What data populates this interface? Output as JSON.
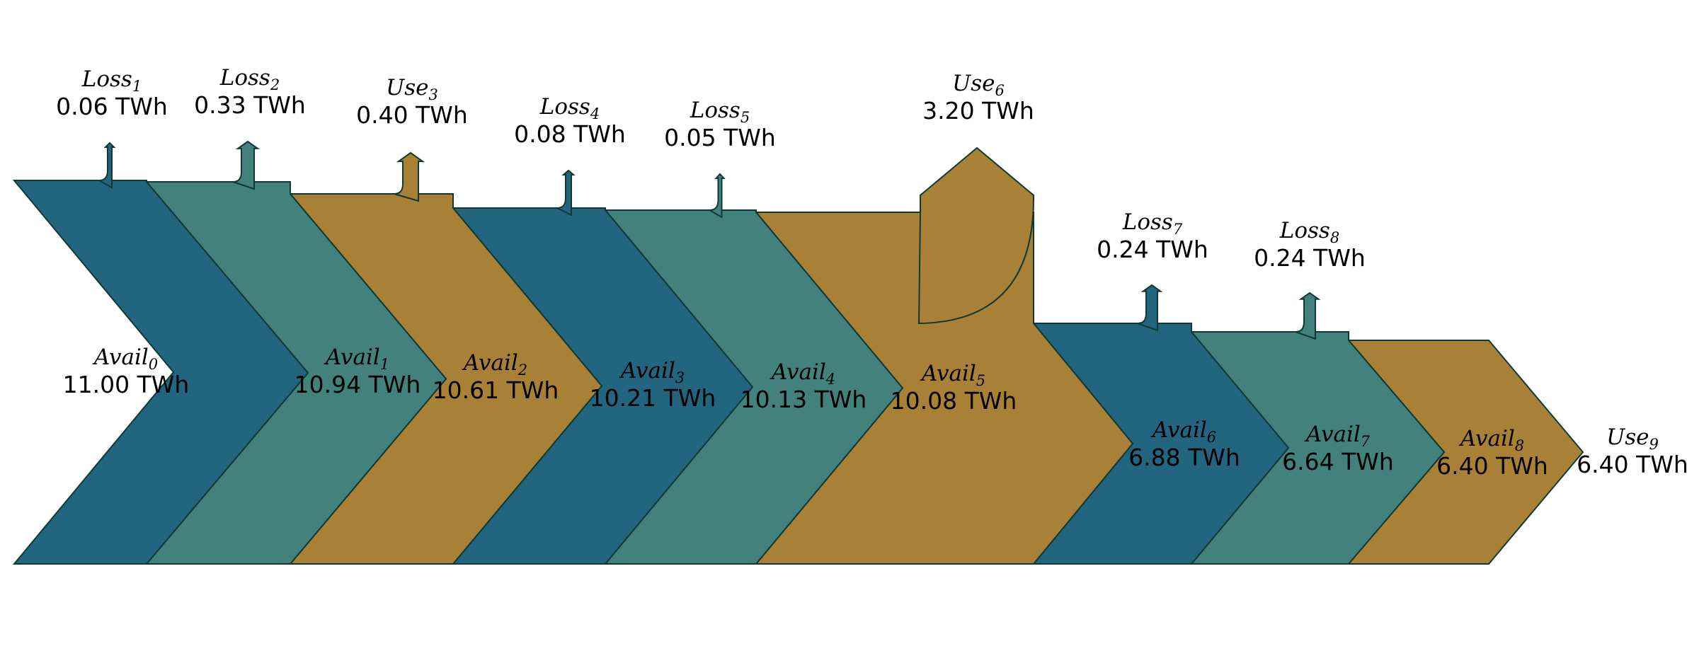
{
  "colors": {
    "blue": "#23647f",
    "teal": "#43827c",
    "gold": "#a98136",
    "edge": "#0e3a33"
  },
  "segments": [
    {
      "name": "Avail",
      "sub": "0",
      "value": "11.00 TWh",
      "color": "blue"
    },
    {
      "name": "Avail",
      "sub": "1",
      "value": "10.94 TWh",
      "color": "teal"
    },
    {
      "name": "Avail",
      "sub": "2",
      "value": "10.61 TWh",
      "color": "gold"
    },
    {
      "name": "Avail",
      "sub": "3",
      "value": "10.21 TWh",
      "color": "blue"
    },
    {
      "name": "Avail",
      "sub": "4",
      "value": "10.13 TWh",
      "color": "teal"
    },
    {
      "name": "Avail",
      "sub": "5",
      "value": "10.08 TWh",
      "color": "gold"
    },
    {
      "name": "Avail",
      "sub": "6",
      "value": "6.88 TWh",
      "color": "blue"
    },
    {
      "name": "Avail",
      "sub": "7",
      "value": "6.64 TWh",
      "color": "teal"
    },
    {
      "name": "Avail",
      "sub": "8",
      "value": "6.40 TWh",
      "color": "gold"
    }
  ],
  "outflows": [
    {
      "name": "Loss",
      "sub": "1",
      "value": "0.06 TWh",
      "color": "blue"
    },
    {
      "name": "Loss",
      "sub": "2",
      "value": "0.33 TWh",
      "color": "teal"
    },
    {
      "name": "Use",
      "sub": "3",
      "value": "0.40 TWh",
      "color": "gold"
    },
    {
      "name": "Loss",
      "sub": "4",
      "value": "0.08 TWh",
      "color": "blue"
    },
    {
      "name": "Loss",
      "sub": "5",
      "value": "0.05 TWh",
      "color": "teal"
    },
    {
      "name": "Use",
      "sub": "6",
      "value": "3.20 TWh",
      "color": "gold"
    },
    {
      "name": "Loss",
      "sub": "7",
      "value": "0.24 TWh",
      "color": "blue"
    },
    {
      "name": "Loss",
      "sub": "8",
      "value": "0.24 TWh",
      "color": "teal"
    }
  ],
  "final": {
    "name": "Use",
    "sub": "9",
    "value": "6.40 TWh"
  }
}
